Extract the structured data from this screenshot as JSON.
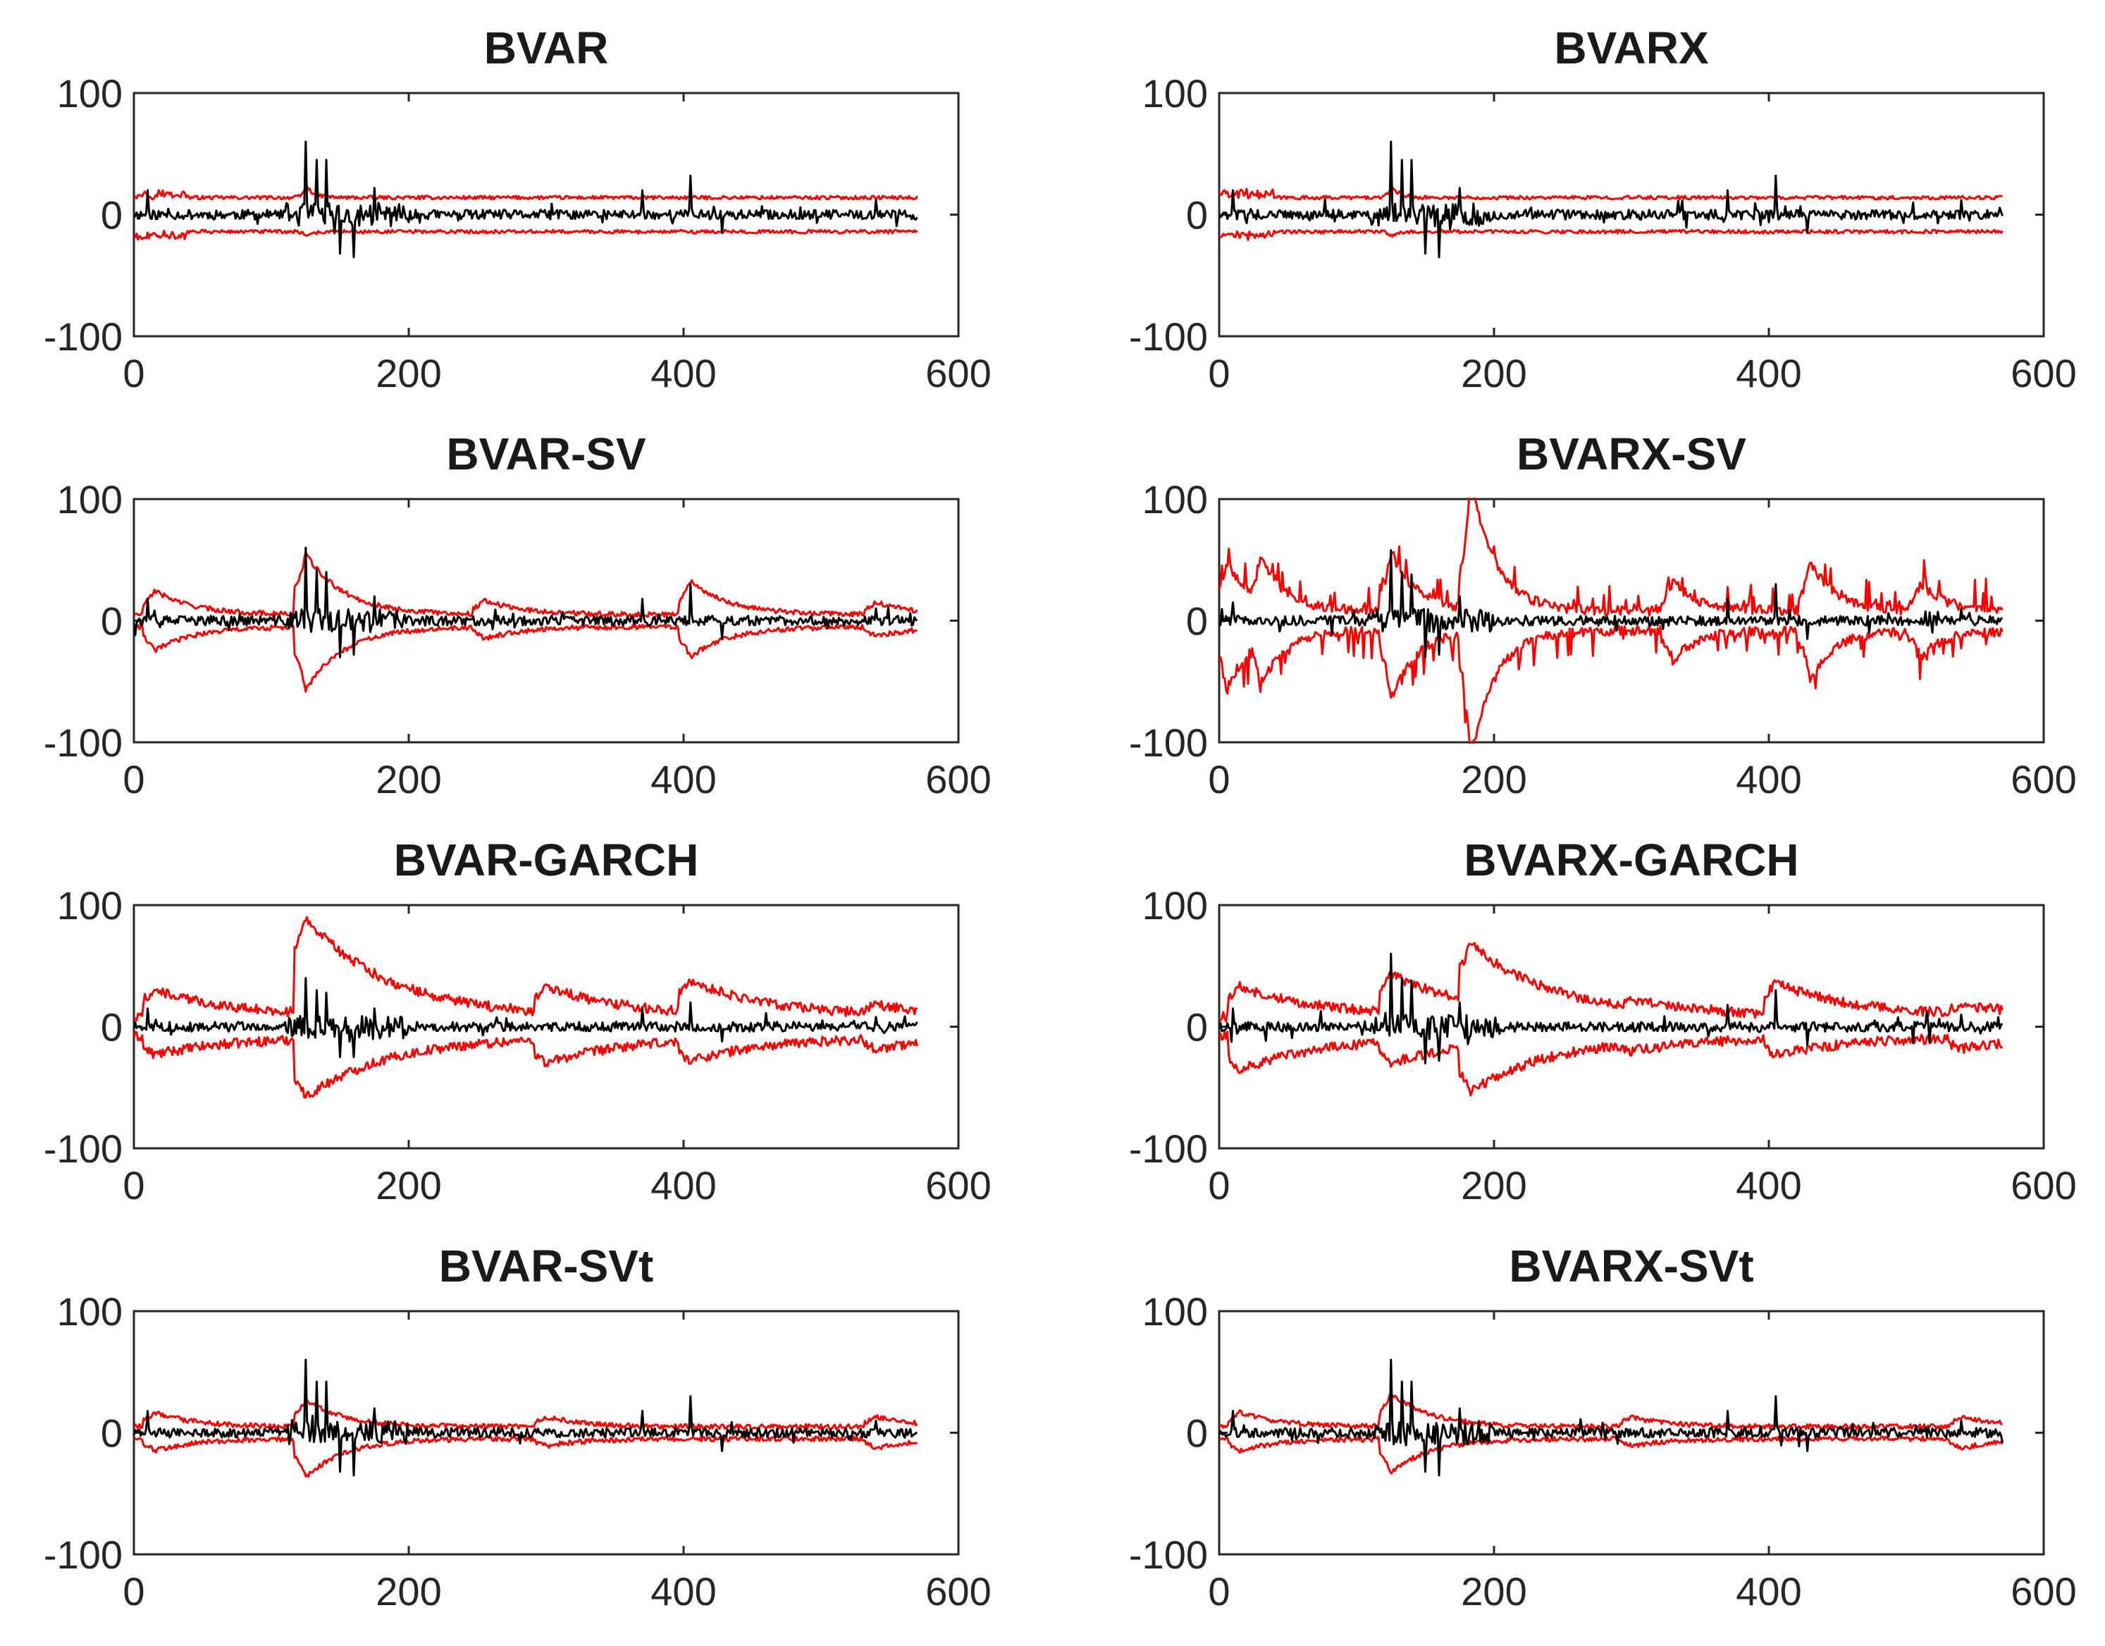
{
  "figure": {
    "description_note": "8 panels: posterior median (black) and credible bands (red) over ~570 observations"
  },
  "colors": {
    "median": "#000000",
    "band": "#ff0000"
  },
  "chart_data": [
    {
      "type": "line",
      "title": "BVAR",
      "xlim": [
        0,
        600
      ],
      "ylim": [
        -100,
        100
      ],
      "xticks": [
        "0",
        "200",
        "400",
        "600"
      ],
      "yticks": [
        "-100",
        "0",
        "100"
      ],
      "n_obs": 570,
      "band_level": 14,
      "series": [
        {
          "name": "median",
          "color": "#000000",
          "spikes": [
            [
              10,
              20
            ],
            [
              125,
              60
            ],
            [
              133,
              45
            ],
            [
              140,
              45
            ],
            [
              150,
              -32
            ],
            [
              160,
              -35
            ],
            [
              175,
              22
            ],
            [
              370,
              20
            ],
            [
              405,
              32
            ],
            [
              428,
              -15
            ],
            [
              540,
              12
            ]
          ]
        },
        {
          "name": "upper band",
          "color": "#ff0000",
          "shape": "flat",
          "level": 14,
          "bumps": [
            [
              125,
              25
            ]
          ]
        },
        {
          "name": "lower band",
          "color": "#ff0000",
          "shape": "flat",
          "level": -14,
          "bumps": [
            [
              125,
              -8
            ]
          ]
        }
      ]
    },
    {
      "type": "line",
      "title": "BVARX",
      "xlim": [
        0,
        600
      ],
      "ylim": [
        -100,
        100
      ],
      "xticks": [
        "0",
        "200",
        "400",
        "600"
      ],
      "yticks": [
        "-100",
        "0",
        "100"
      ],
      "n_obs": 570,
      "series": [
        {
          "name": "median",
          "color": "#000000",
          "spikes": [
            [
              10,
              20
            ],
            [
              125,
              60
            ],
            [
              133,
              45
            ],
            [
              140,
              45
            ],
            [
              150,
              -32
            ],
            [
              160,
              -35
            ],
            [
              175,
              22
            ],
            [
              370,
              20
            ],
            [
              405,
              32
            ],
            [
              428,
              -15
            ],
            [
              540,
              12
            ]
          ]
        },
        {
          "name": "upper band",
          "color": "#ff0000",
          "shape": "flat",
          "level": 14,
          "bumps": [
            [
              125,
              25
            ]
          ]
        },
        {
          "name": "lower band",
          "color": "#ff0000",
          "shape": "flat",
          "level": -14,
          "bumps": [
            [
              125,
              -8
            ]
          ]
        }
      ]
    },
    {
      "type": "line",
      "title": "BVAR-SV",
      "xlim": [
        0,
        600
      ],
      "ylim": [
        -100,
        100
      ],
      "xticks": [
        "0",
        "200",
        "400",
        "600"
      ],
      "yticks": [
        "-100",
        "0",
        "100"
      ],
      "n_obs": 570,
      "series": [
        {
          "name": "median",
          "color": "#000000",
          "spikes": [
            [
              10,
              18
            ],
            [
              125,
              60
            ],
            [
              133,
              42
            ],
            [
              140,
              40
            ],
            [
              150,
              -30
            ],
            [
              160,
              -28
            ],
            [
              175,
              20
            ],
            [
              370,
              18
            ],
            [
              405,
              30
            ],
            [
              428,
              -15
            ],
            [
              540,
              10
            ]
          ]
        },
        {
          "name": "upper band",
          "color": "#ff0000",
          "shape": "sv",
          "peaks": [
            [
              15,
              20
            ],
            [
              125,
              50
            ],
            [
              255,
              12
            ],
            [
              405,
              28
            ],
            [
              540,
              10
            ]
          ]
        },
        {
          "name": "lower band",
          "color": "#ff0000",
          "shape": "sv",
          "peaks": [
            [
              15,
              -20
            ],
            [
              125,
              -52
            ],
            [
              255,
              -10
            ],
            [
              405,
              -25
            ],
            [
              540,
              -8
            ]
          ]
        }
      ]
    },
    {
      "type": "line",
      "title": "BVARX-SV",
      "xlim": [
        0,
        600
      ],
      "ylim": [
        -100,
        100
      ],
      "xticks": [
        "0",
        "200",
        "400",
        "600"
      ],
      "yticks": [
        "-100",
        "0",
        "100"
      ],
      "n_obs": 570,
      "series": [
        {
          "name": "median",
          "color": "#000000",
          "spikes": [
            [
              10,
              15
            ],
            [
              125,
              58
            ],
            [
              133,
              40
            ],
            [
              140,
              38
            ],
            [
              150,
              -30
            ],
            [
              160,
              -28
            ],
            [
              175,
              20
            ],
            [
              370,
              18
            ],
            [
              405,
              30
            ],
            [
              428,
              -15
            ],
            [
              540,
              10
            ]
          ]
        },
        {
          "name": "upper band",
          "color": "#ff0000",
          "shape": "noisy",
          "peaks": [
            [
              5,
              40
            ],
            [
              30,
              45
            ],
            [
              125,
              50
            ],
            [
              183,
              110
            ],
            [
              330,
              25
            ],
            [
              430,
              42
            ],
            [
              510,
              22
            ]
          ]
        },
        {
          "name": "lower band",
          "color": "#ff0000",
          "shape": "noisy",
          "peaks": [
            [
              5,
              -50
            ],
            [
              30,
              -45
            ],
            [
              125,
              -58
            ],
            [
              183,
              -105
            ],
            [
              330,
              -25
            ],
            [
              430,
              -40
            ],
            [
              510,
              -22
            ]
          ]
        }
      ]
    },
    {
      "type": "line",
      "title": "BVAR-GARCH",
      "xlim": [
        0,
        600
      ],
      "ylim": [
        -100,
        100
      ],
      "xticks": [
        "0",
        "200",
        "400",
        "600"
      ],
      "yticks": [
        "-100",
        "0",
        "100"
      ],
      "n_obs": 570,
      "series": [
        {
          "name": "median",
          "color": "#000000",
          "spikes": [
            [
              10,
              15
            ],
            [
              125,
              40
            ],
            [
              133,
              30
            ],
            [
              140,
              28
            ],
            [
              150,
              -25
            ],
            [
              160,
              -25
            ],
            [
              175,
              15
            ],
            [
              370,
              15
            ],
            [
              405,
              20
            ],
            [
              428,
              -12
            ],
            [
              540,
              8
            ]
          ]
        },
        {
          "name": "upper band",
          "color": "#ff0000",
          "shape": "garch",
          "peaks": [
            [
              15,
              22
            ],
            [
              125,
              82
            ],
            [
              300,
              25
            ],
            [
              405,
              30
            ],
            [
              540,
              10
            ]
          ]
        },
        {
          "name": "lower band",
          "color": "#ff0000",
          "shape": "garch",
          "peaks": [
            [
              15,
              -15
            ],
            [
              125,
              -50
            ],
            [
              300,
              -22
            ],
            [
              405,
              -20
            ],
            [
              540,
              -10
            ]
          ]
        }
      ]
    },
    {
      "type": "line",
      "title": "BVARX-GARCH",
      "xlim": [
        0,
        600
      ],
      "ylim": [
        -100,
        100
      ],
      "xticks": [
        "0",
        "200",
        "400",
        "600"
      ],
      "yticks": [
        "-100",
        "0",
        "100"
      ],
      "n_obs": 570,
      "series": [
        {
          "name": "median",
          "color": "#000000",
          "spikes": [
            [
              10,
              15
            ],
            [
              125,
              60
            ],
            [
              133,
              40
            ],
            [
              140,
              38
            ],
            [
              150,
              -30
            ],
            [
              160,
              -28
            ],
            [
              175,
              20
            ],
            [
              370,
              18
            ],
            [
              405,
              30
            ],
            [
              428,
              -15
            ],
            [
              540,
              10
            ]
          ]
        },
        {
          "name": "upper band",
          "color": "#ff0000",
          "shape": "garch",
          "peaks": [
            [
              15,
              25
            ],
            [
              125,
              35
            ],
            [
              183,
              60
            ],
            [
              300,
              15
            ],
            [
              405,
              28
            ],
            [
              540,
              10
            ]
          ]
        },
        {
          "name": "lower band",
          "color": "#ff0000",
          "shape": "garch",
          "peaks": [
            [
              15,
              -28
            ],
            [
              125,
              -22
            ],
            [
              183,
              -45
            ],
            [
              300,
              -12
            ],
            [
              405,
              -15
            ],
            [
              540,
              -10
            ]
          ]
        }
      ]
    },
    {
      "type": "line",
      "title": "BVAR-SVt",
      "xlim": [
        0,
        600
      ],
      "ylim": [
        -100,
        100
      ],
      "xticks": [
        "0",
        "200",
        "400",
        "600"
      ],
      "yticks": [
        "-100",
        "0",
        "100"
      ],
      "n_obs": 570,
      "series": [
        {
          "name": "median",
          "color": "#000000",
          "spikes": [
            [
              10,
              18
            ],
            [
              125,
              60
            ],
            [
              133,
              42
            ],
            [
              140,
              42
            ],
            [
              150,
              -32
            ],
            [
              160,
              -35
            ],
            [
              175,
              20
            ],
            [
              370,
              18
            ],
            [
              405,
              30
            ],
            [
              428,
              -15
            ],
            [
              540,
              10
            ]
          ]
        },
        {
          "name": "upper band",
          "color": "#ff0000",
          "shape": "sv",
          "peaks": [
            [
              15,
              12
            ],
            [
              125,
              22
            ],
            [
              300,
              8
            ],
            [
              540,
              8
            ]
          ]
        },
        {
          "name": "lower band",
          "color": "#ff0000",
          "shape": "sv",
          "peaks": [
            [
              15,
              -10
            ],
            [
              125,
              -32
            ],
            [
              300,
              -6
            ],
            [
              540,
              -8
            ]
          ]
        }
      ]
    },
    {
      "type": "line",
      "title": "BVARX-SVt",
      "xlim": [
        0,
        600
      ],
      "ylim": [
        -100,
        100
      ],
      "xticks": [
        "0",
        "200",
        "400",
        "600"
      ],
      "yticks": [
        "-100",
        "0",
        "100"
      ],
      "n_obs": 570,
      "series": [
        {
          "name": "median",
          "color": "#000000",
          "spikes": [
            [
              10,
              18
            ],
            [
              125,
              60
            ],
            [
              133,
              42
            ],
            [
              140,
              42
            ],
            [
              150,
              -32
            ],
            [
              160,
              -35
            ],
            [
              175,
              20
            ],
            [
              370,
              18
            ],
            [
              405,
              30
            ],
            [
              428,
              -15
            ],
            [
              540,
              10
            ]
          ]
        },
        {
          "name": "upper band",
          "color": "#ff0000",
          "shape": "sv",
          "peaks": [
            [
              15,
              12
            ],
            [
              125,
              28
            ],
            [
              300,
              8
            ],
            [
              540,
              8
            ]
          ]
        },
        {
          "name": "lower band",
          "color": "#ff0000",
          "shape": "sv",
          "peaks": [
            [
              15,
              -10
            ],
            [
              125,
              -28
            ],
            [
              300,
              -6
            ],
            [
              540,
              -8
            ]
          ]
        }
      ]
    }
  ]
}
